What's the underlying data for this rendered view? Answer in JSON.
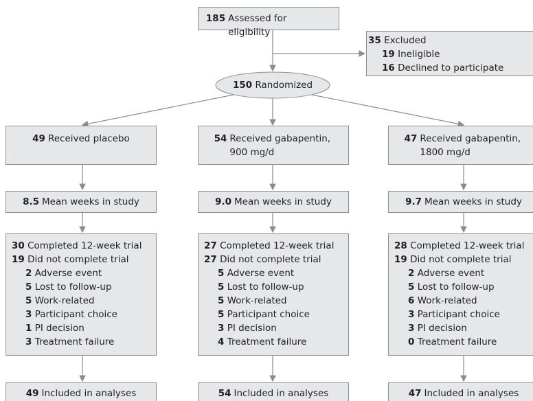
{
  "assessed": {
    "n": 185,
    "text": "Assessed for eligibility"
  },
  "excluded": {
    "n": 35,
    "text": "Excluded",
    "reasons": [
      {
        "n": 19,
        "text": "Ineligible"
      },
      {
        "n": 16,
        "text": "Declined to participate"
      }
    ]
  },
  "randomized": {
    "n": 150,
    "text": "Randomized"
  },
  "arms": [
    {
      "received": {
        "n": 49,
        "text": "Received placebo"
      },
      "weeks": {
        "n": "8.5",
        "text": "Mean weeks in study"
      },
      "completed": {
        "n": 30,
        "text": "Completed 12-week trial"
      },
      "not_completed": {
        "n": 19,
        "text": "Did not complete trial"
      },
      "reasons": [
        {
          "n": 2,
          "text": "Adverse event"
        },
        {
          "n": 5,
          "text": "Lost to follow-up"
        },
        {
          "n": 5,
          "text": "Work-related"
        },
        {
          "n": 3,
          "text": "Participant choice"
        },
        {
          "n": 1,
          "text": "PI decision"
        },
        {
          "n": 3,
          "text": "Treatment failure"
        }
      ],
      "analyzed": {
        "n": 49,
        "text": "Included in analyses"
      }
    },
    {
      "received": {
        "n": 54,
        "text": "Received gabapentin, 900 mg/d"
      },
      "weeks": {
        "n": "9.0",
        "text": "Mean weeks in study"
      },
      "completed": {
        "n": 27,
        "text": "Completed 12-week trial"
      },
      "not_completed": {
        "n": 27,
        "text": "Did not complete trial"
      },
      "reasons": [
        {
          "n": 5,
          "text": "Adverse event"
        },
        {
          "n": 5,
          "text": "Lost to follow-up"
        },
        {
          "n": 5,
          "text": "Work-related"
        },
        {
          "n": 5,
          "text": "Participant choice"
        },
        {
          "n": 3,
          "text": "PI decision"
        },
        {
          "n": 4,
          "text": "Treatment failure"
        }
      ],
      "analyzed": {
        "n": 54,
        "text": "Included in analyses"
      }
    },
    {
      "received": {
        "n": 47,
        "text": "Received gabapentin, 1800 mg/d"
      },
      "weeks": {
        "n": "9.7",
        "text": "Mean weeks in study"
      },
      "completed": {
        "n": 28,
        "text": "Completed 12-week trial"
      },
      "not_completed": {
        "n": 19,
        "text": "Did not complete trial"
      },
      "reasons": [
        {
          "n": 2,
          "text": "Adverse event"
        },
        {
          "n": 5,
          "text": "Lost to follow-up"
        },
        {
          "n": 6,
          "text": "Work-related"
        },
        {
          "n": 3,
          "text": "Participant choice"
        },
        {
          "n": 3,
          "text": "PI decision"
        },
        {
          "n": 0,
          "text": "Treatment failure"
        }
      ],
      "analyzed": {
        "n": 47,
        "text": "Included in analyses"
      }
    }
  ]
}
